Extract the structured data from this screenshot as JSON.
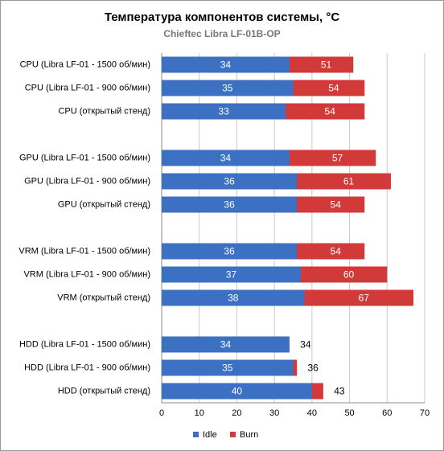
{
  "chart_data": {
    "type": "bar",
    "orientation": "horizontal",
    "overlap": true,
    "title": "Температура компонентов системы, °C",
    "subtitle": "Chieftec Libra LF-01B-OP",
    "categories": [
      "CPU (Libra LF-01 - 1500 об/мин)",
      "CPU (Libra LF-01 - 900 об/мин)",
      "CPU (открытый стенд)",
      null,
      "GPU (Libra LF-01 - 1500 об/мин)",
      "GPU (Libra LF-01 - 900 об/мин)",
      "GPU (открытый стенд)",
      null,
      "VRM (Libra LF-01 - 1500 об/мин)",
      "VRM (Libra LF-01 - 900 об/мин)",
      "VRM (открытый стенд)",
      null,
      "HDD (Libra LF-01 - 1500 об/мин)",
      "HDD (Libra LF-01 - 900 об/мин)",
      "HDD (открытый стенд)"
    ],
    "series": [
      {
        "name": "Burn",
        "color": "#d23a3a",
        "values": [
          51,
          54,
          54,
          null,
          57,
          61,
          54,
          null,
          54,
          60,
          67,
          null,
          34,
          36,
          43
        ]
      },
      {
        "name": "Idle",
        "color": "#3c70c3",
        "values": [
          34,
          35,
          33,
          null,
          34,
          36,
          36,
          null,
          36,
          37,
          38,
          null,
          34,
          35,
          40
        ]
      }
    ],
    "xlim": [
      0,
      70
    ],
    "xticks": [
      0,
      10,
      20,
      30,
      40,
      50,
      60,
      70
    ],
    "grid": true
  }
}
